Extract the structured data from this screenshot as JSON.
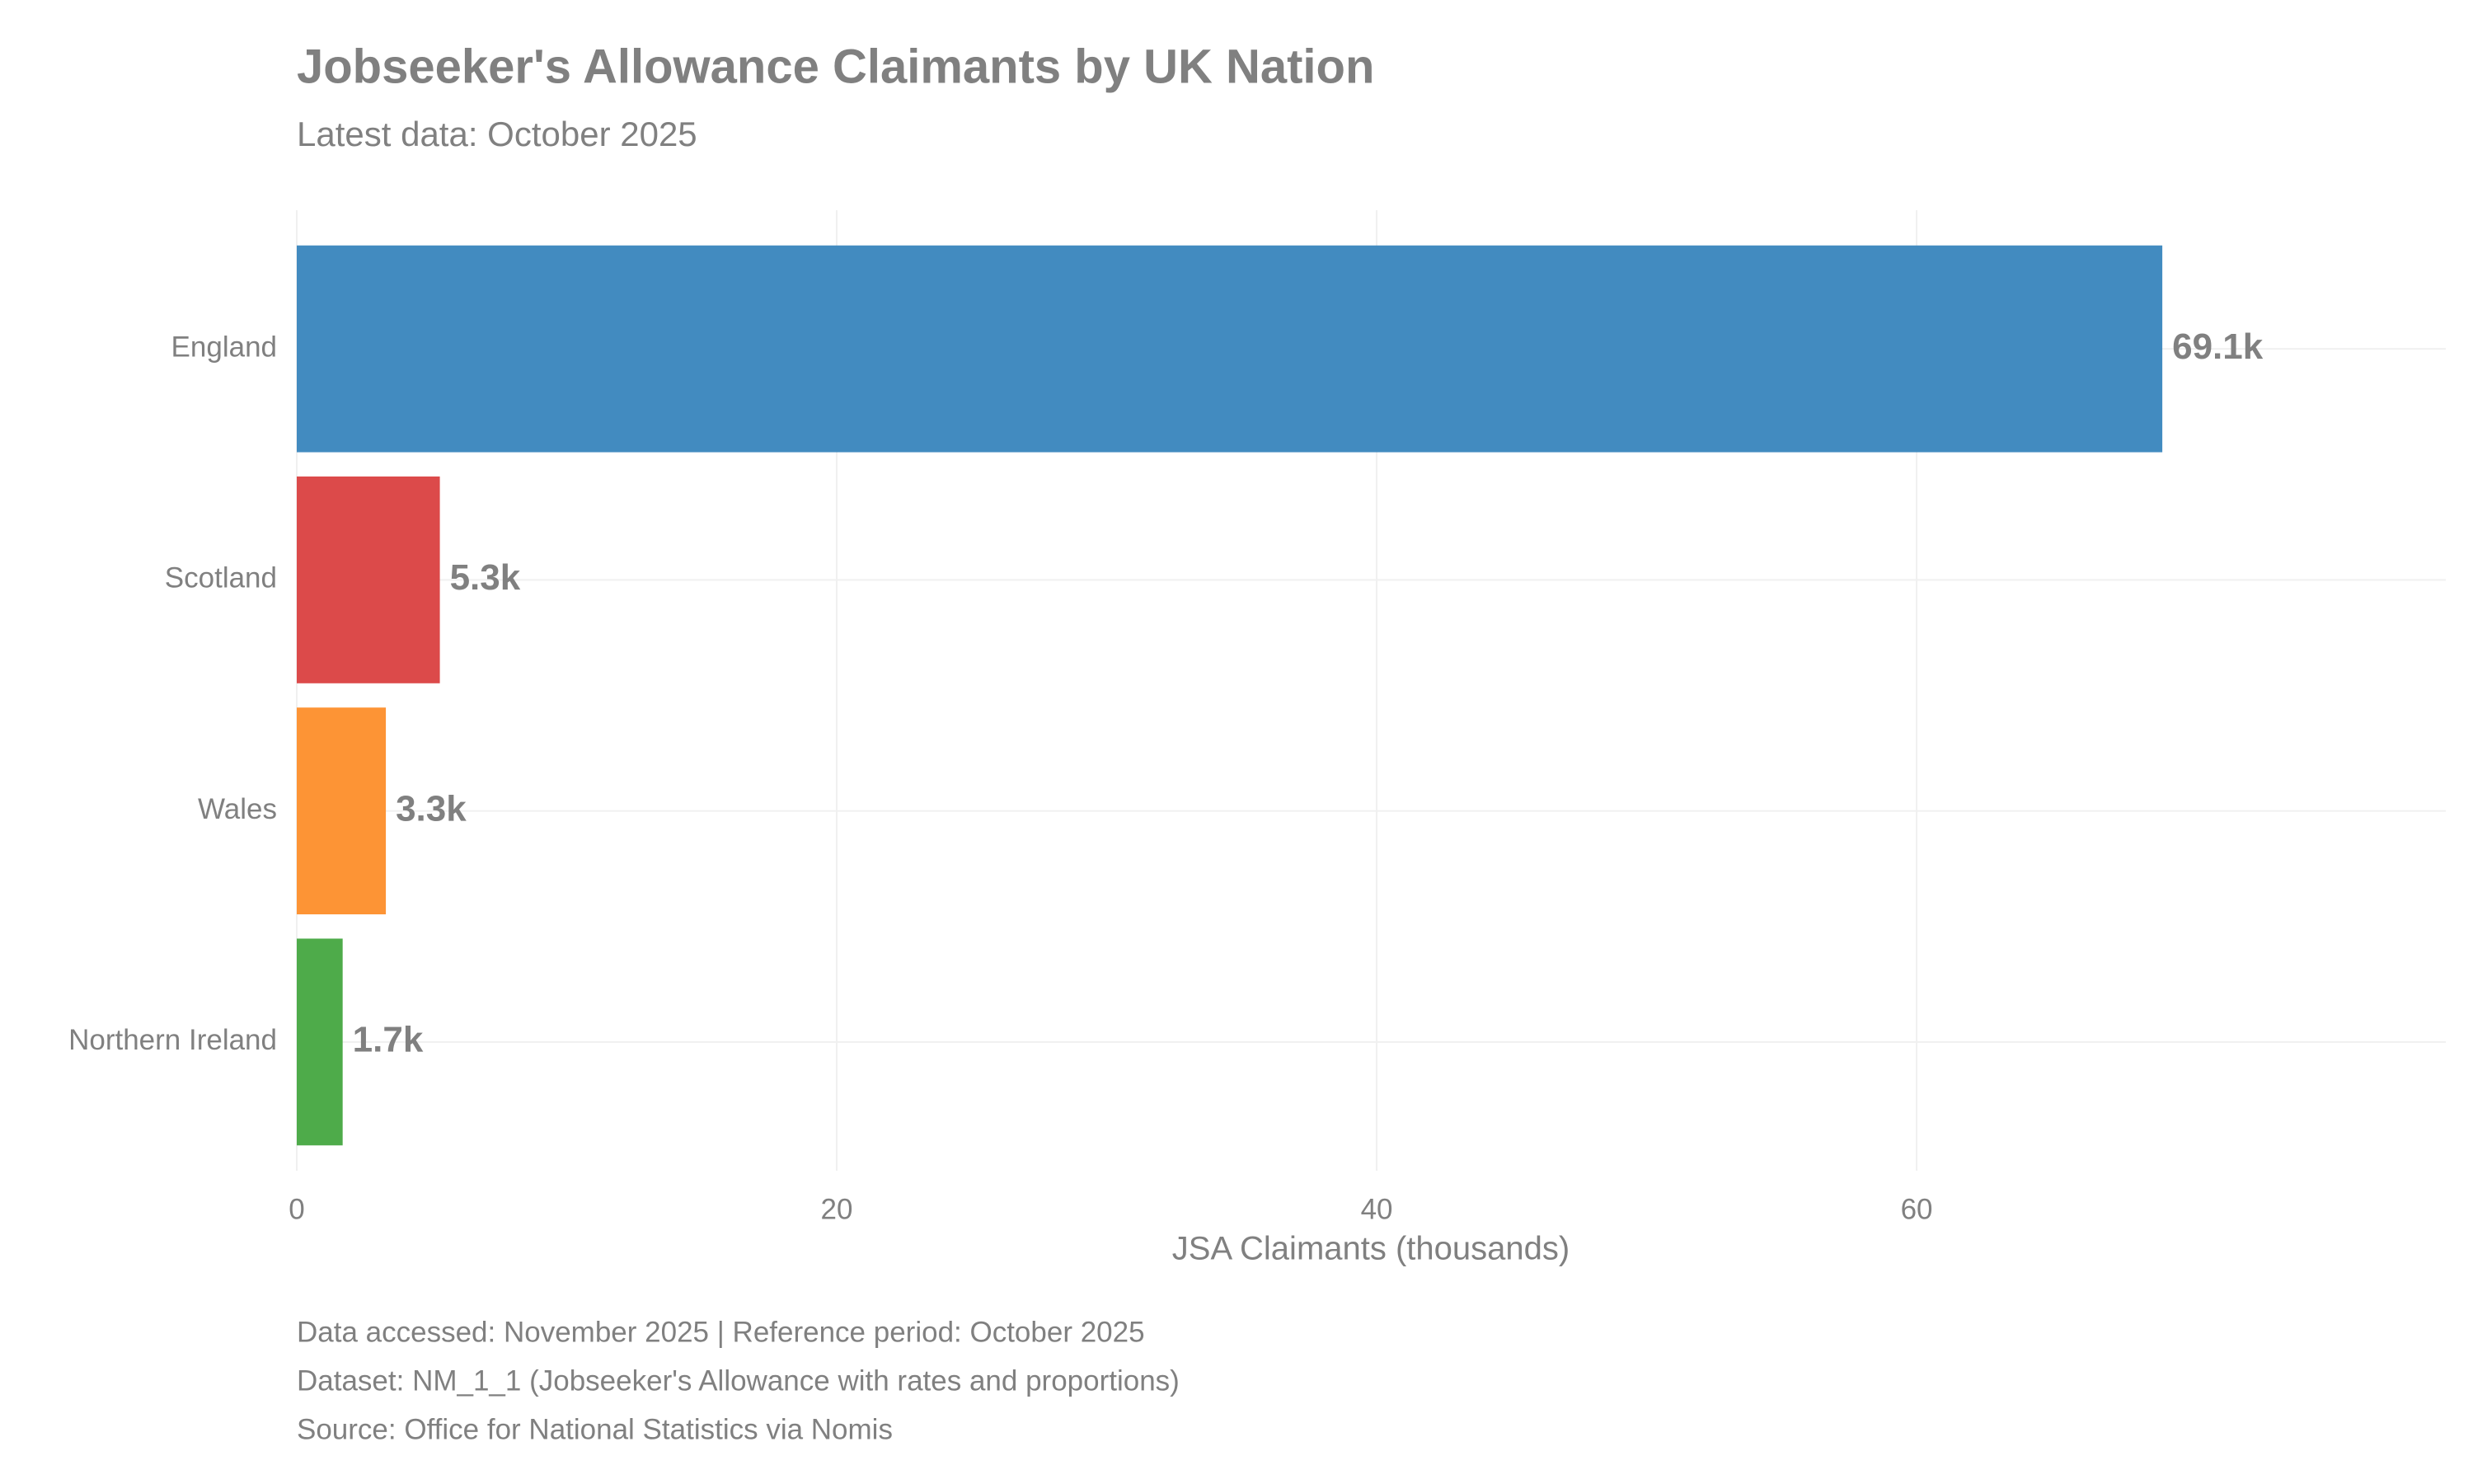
{
  "chart_data": {
    "type": "bar",
    "orientation": "horizontal",
    "title": "Jobseeker's Allowance Claimants by UK Nation",
    "subtitle": "Latest data: October 2025",
    "x_label": "JSA Claimants (thousands)",
    "categories": [
      "England",
      "Scotland",
      "Wales",
      "Northern Ireland"
    ],
    "values": [
      69.1,
      5.3,
      3.3,
      1.7
    ],
    "value_labels": [
      "69.1k",
      "5.3k",
      "3.3k",
      "1.7k"
    ],
    "colors": [
      "#428bc0",
      "#dc4a4a",
      "#fd9435",
      "#4eab4a"
    ],
    "xlim": [
      0,
      79.6
    ],
    "xticks": [
      0,
      20,
      40,
      60
    ],
    "grid": true,
    "caption": [
      "Data accessed: November 2025 | Reference period: October 2025",
      "Dataset: NM_1_1 (Jobseeker's Allowance with rates and proportions)",
      "Source: Office for National Statistics via Nomis"
    ]
  }
}
